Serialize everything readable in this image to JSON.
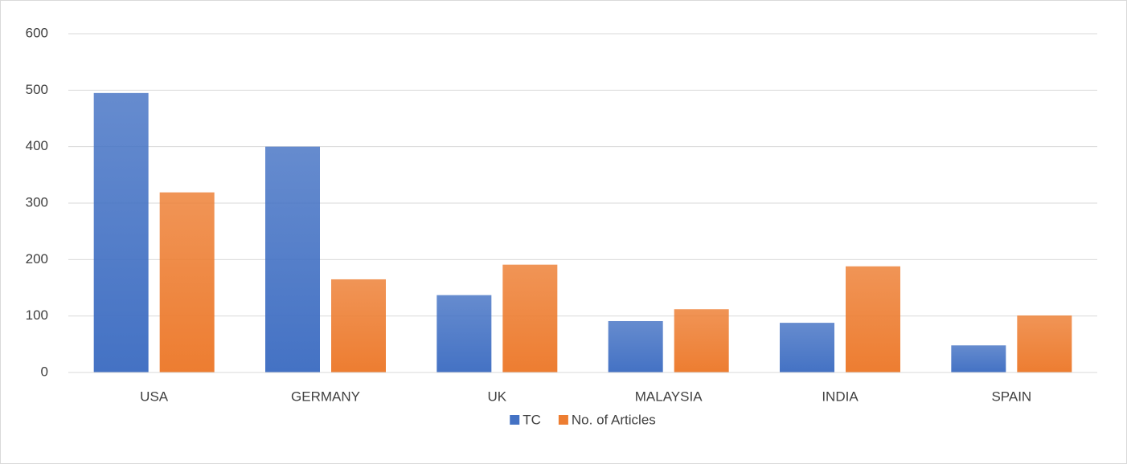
{
  "chart_data": {
    "type": "bar",
    "categories": [
      "USA",
      "GERMANY",
      "UK",
      "MALAYSIA",
      "INDIA",
      "SPAIN"
    ],
    "series": [
      {
        "name": "TC",
        "color": "#4472c4",
        "values": [
          495,
          400,
          137,
          91,
          88,
          48
        ]
      },
      {
        "name": "No. of Articles",
        "color": "#ed7d31",
        "values": [
          319,
          165,
          191,
          112,
          188,
          101
        ]
      }
    ],
    "ylim": [
      0,
      600
    ],
    "yticks": [
      0,
      100,
      200,
      300,
      400,
      500,
      600
    ],
    "grid": true,
    "legend": "bottom"
  }
}
